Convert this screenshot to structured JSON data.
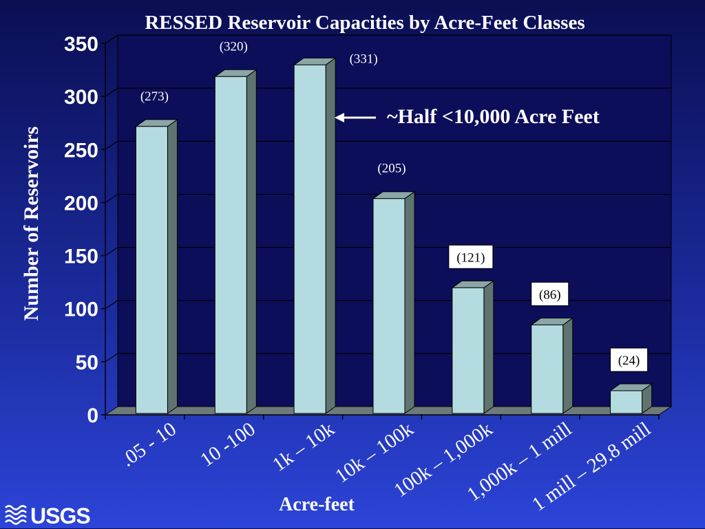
{
  "chart_data": {
    "type": "bar",
    "title": "RESSED Reservoir Capacities by Acre-Feet Classes",
    "xlabel": "Acre-feet",
    "ylabel": "Number of Reservoirs",
    "categories": [
      ".05 - 10",
      "10 -100",
      "1k – 10k",
      "10k – 100k",
      "100k – 1,000k",
      "1,000k – 1 mill",
      "1 mill – 29.8 mill"
    ],
    "values": [
      273,
      320,
      331,
      205,
      121,
      86,
      24
    ],
    "data_labels": [
      "(273)",
      "(320)",
      "(331)",
      "(205)",
      "(121)",
      "(86)",
      "(24)"
    ],
    "boxed_labels": [
      false,
      false,
      false,
      false,
      true,
      true,
      true
    ],
    "ylim": [
      0,
      350
    ],
    "yticks": [
      0,
      50,
      100,
      150,
      200,
      250,
      300,
      350
    ],
    "grid": true,
    "annotation": "~Half <10,000 Acre Feet",
    "bar_color": "#b4dce0",
    "plot_bg": "#0c0e5a"
  },
  "logo": {
    "text": "USGS"
  },
  "colors": {
    "text": "#ffffff",
    "bar_side": "#5f7470",
    "bar_top": "#8aa6a6",
    "floor": "#6d7a78"
  }
}
